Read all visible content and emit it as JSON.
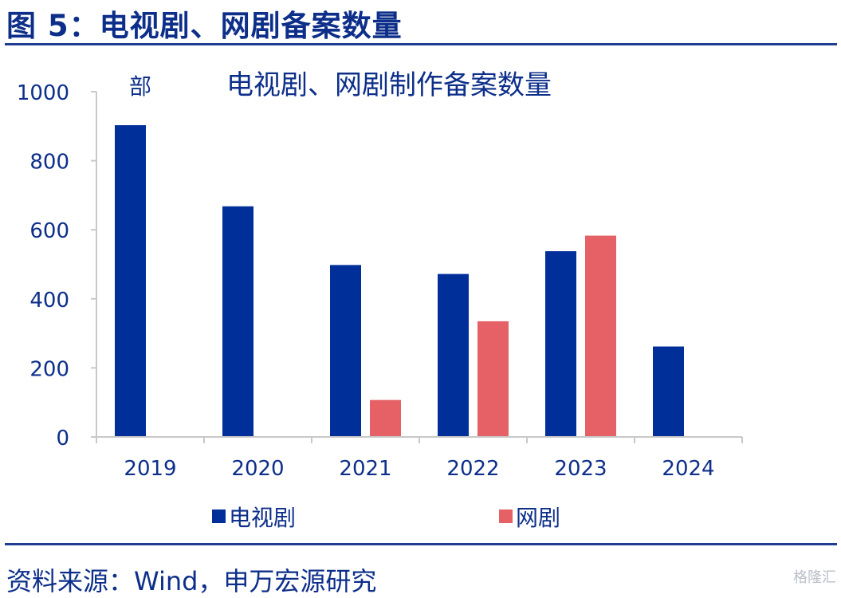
{
  "figure_title": "图 5：电视剧、网剧备案数量",
  "source": "资料来源：Wind，申万宏源研究",
  "watermark": "格隆汇",
  "chart_data": {
    "type": "bar",
    "title": "电视剧、网剧制作备案数量",
    "unit_label": "部",
    "categories": [
      "2019",
      "2020",
      "2021",
      "2022",
      "2023",
      "2024"
    ],
    "series": [
      {
        "name": "电视剧",
        "color": "#002f9a",
        "values": [
          903,
          668,
          498,
          472,
          538,
          262
        ]
      },
      {
        "name": "网剧",
        "color": "#e66166",
        "values": [
          null,
          null,
          107,
          335,
          583,
          null
        ]
      }
    ],
    "ylim": [
      0,
      1000
    ],
    "yticks": [
      "0",
      "200",
      "400",
      "600",
      "800",
      "1000"
    ],
    "grid": false,
    "legend_position": "bottom"
  }
}
